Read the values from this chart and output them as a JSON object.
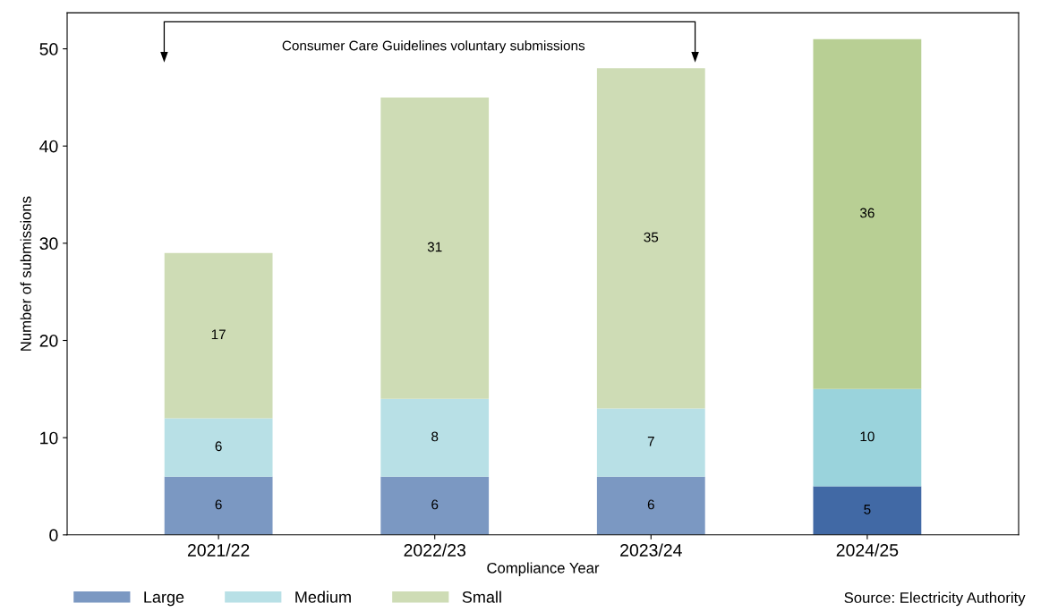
{
  "chart_data": {
    "type": "bar",
    "stacked": true,
    "xlabel": "Compliance Year",
    "ylabel": "Number of submissions",
    "categories": [
      "2021/22",
      "2022/23",
      "2023/24",
      "2024/25"
    ],
    "series": [
      {
        "name": "Large",
        "color": "#7b98c2",
        "colors": [
          "#7b98c2",
          "#7b98c2",
          "#7b98c2",
          "#4169a5"
        ],
        "values": [
          6,
          6,
          6,
          5
        ]
      },
      {
        "name": "Medium",
        "color": "#b8e0e6",
        "colors": [
          "#b8e0e6",
          "#b8e0e6",
          "#b8e0e6",
          "#9ad3dc"
        ],
        "values": [
          6,
          8,
          7,
          10
        ]
      },
      {
        "name": "Small",
        "color": "#cedcb5",
        "colors": [
          "#cedcb5",
          "#cedcb5",
          "#cedcb5",
          "#b8cf94"
        ],
        "values": [
          17,
          31,
          35,
          36
        ]
      }
    ],
    "ylim": [
      0,
      53.7
    ],
    "yticks": [
      0,
      10,
      20,
      30,
      40,
      50
    ],
    "data_labels": true,
    "grid": false,
    "legend": "bottom left",
    "annotations": [
      "Consumer Care Guidelines voluntary submissions",
      "Source: Electricity Authority"
    ]
  }
}
